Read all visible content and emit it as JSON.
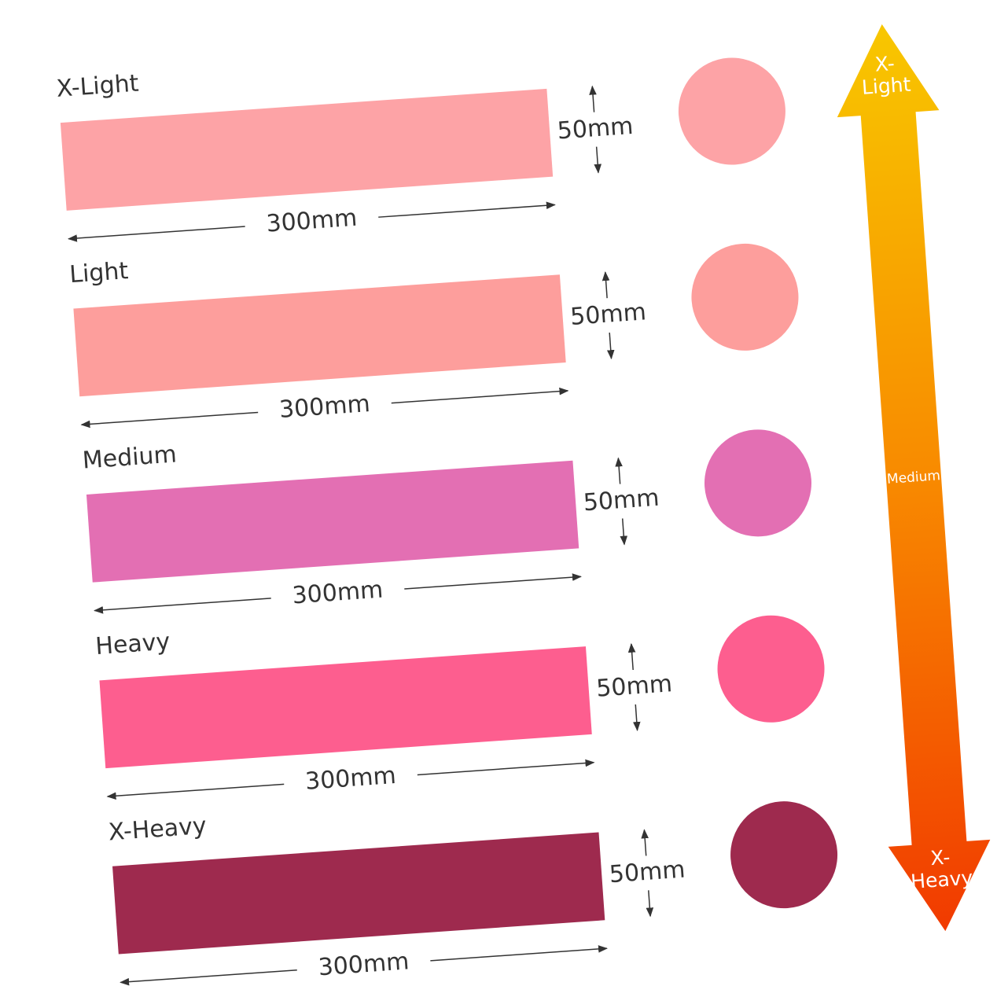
{
  "rows": [
    {
      "label": "X-Light",
      "color": "#fda3a6",
      "length": "300mm",
      "height": "50mm"
    },
    {
      "label": "Light",
      "color": "#fd9e9c",
      "length": "300mm",
      "height": "50mm"
    },
    {
      "label": "Medium",
      "color": "#e36fb3",
      "length": "300mm",
      "height": "50mm"
    },
    {
      "label": "Heavy",
      "color": "#fd5e8f",
      "length": "300mm",
      "height": "50mm"
    },
    {
      "label": "X-Heavy",
      "color": "#9e2a4e",
      "length": "300mm",
      "height": "50mm"
    }
  ],
  "scale": {
    "top": [
      "X-",
      "Light"
    ],
    "middle": "Medium",
    "bottom": [
      "X-",
      "Heavy"
    ]
  }
}
